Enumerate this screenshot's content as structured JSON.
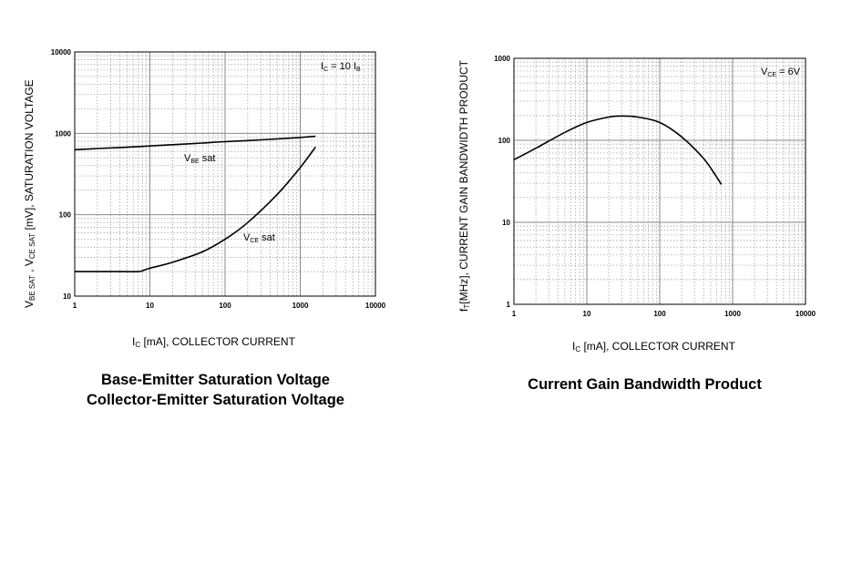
{
  "chart_data": [
    {
      "type": "line",
      "xscale": "log",
      "yscale": "log",
      "xlim": [
        1,
        10000
      ],
      "ylim": [
        10,
        10000
      ],
      "grid": true,
      "xticks": [
        "1",
        "10",
        "100",
        "1000",
        "10000"
      ],
      "yticks": [
        "10",
        "100",
        "1000",
        "10000"
      ],
      "xlabel": {
        "main": "I",
        "sub": "C",
        "rest": " [mA], COLLECTOR CURRENT"
      },
      "ylabel": {
        "part1": "V",
        "sub1": "BE SAT",
        "part2": "  ,  V",
        "sub2": "CE SAT",
        "rest": "  [mV], SATURATION VOLTAGE"
      },
      "annotation": {
        "part1": "I",
        "sub1": "C",
        "part2": " = 10 I",
        "sub2": "B"
      },
      "series": [
        {
          "name_main": "V",
          "name_sub": "BE",
          "name_rest": " sat",
          "x": [
            1,
            2,
            5,
            10,
            20,
            50,
            100,
            200,
            500,
            1000,
            1600
          ],
          "y": [
            630,
            650,
            675,
            700,
            725,
            760,
            790,
            815,
            855,
            890,
            920
          ]
        },
        {
          "name_main": "V",
          "name_sub": "CE",
          "name_rest": " sat",
          "x": [
            1,
            2,
            4,
            7,
            8,
            10,
            20,
            50,
            100,
            200,
            500,
            1000,
            1600
          ],
          "y": [
            20,
            20,
            20,
            20,
            20.5,
            22,
            26,
            35,
            50,
            80,
            180,
            380,
            680
          ]
        }
      ],
      "caption": [
        "Base-Emitter Saturation Voltage",
        "Collector-Emitter Saturation Voltage"
      ]
    },
    {
      "type": "line",
      "xscale": "log",
      "yscale": "log",
      "xlim": [
        1,
        10000
      ],
      "ylim": [
        1,
        1000
      ],
      "grid": true,
      "xticks": [
        "1",
        "10",
        "100",
        "1000",
        "10000"
      ],
      "yticks": [
        "1",
        "10",
        "100",
        "1000"
      ],
      "xlabel": {
        "main": "I",
        "sub": "C",
        "rest": " [mA], COLLECTOR CURRENT"
      },
      "ylabel": {
        "part1": "f",
        "sub1": "T",
        "rest": "[MHz], CURRENT GAIN BANDWIDTH PRODUCT"
      },
      "annotation": {
        "part1": "V",
        "sub1": "CE",
        "part2": " = 6V"
      },
      "series": [
        {
          "x": [
            1,
            2,
            5,
            10,
            20,
            30,
            50,
            100,
            200,
            400,
            600,
            700
          ],
          "y": [
            58,
            80,
            125,
            165,
            192,
            198,
            192,
            165,
            110,
            60,
            36,
            29
          ]
        }
      ],
      "caption": [
        "Current Gain Bandwidth Product"
      ]
    }
  ]
}
